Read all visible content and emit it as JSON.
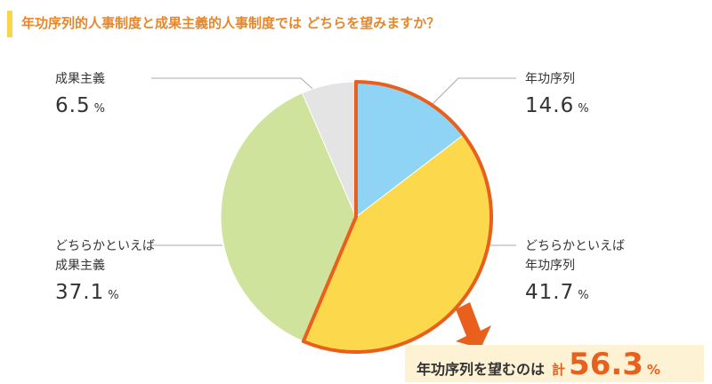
{
  "chart_data": {
    "type": "pie",
    "title": "年功序列的人事制度と成果主義的人事制度では どちらを望みますか？",
    "categories": [
      "年功序列",
      "どちらかといえば\n年功序列",
      "どちらかといえば\n成果主義",
      "成果主義"
    ],
    "values": [
      14.6,
      41.7,
      37.1,
      6.5
    ],
    "colors": [
      "#8fd4f4",
      "#fcd84c",
      "#cfe39c",
      "#e4e4e4"
    ],
    "unit": "%",
    "annotation": {
      "text": "年功序列を望むのは",
      "prefix": "計",
      "value": 56.3
    }
  }
}
